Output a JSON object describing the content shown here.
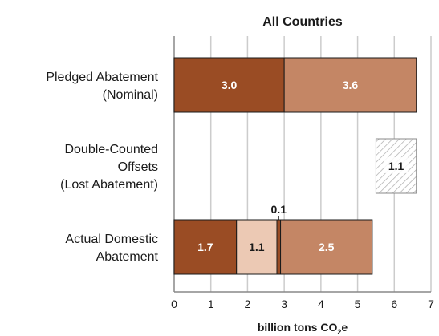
{
  "chart_data": {
    "type": "bar",
    "orientation": "horizontal",
    "stacked": true,
    "title": "All Countries",
    "xlabel": "billion tons CO2e",
    "xlabel_parts": {
      "main": "billion tons CO",
      "subscript": "2",
      "suffix": "e"
    },
    "xlim": [
      0,
      7
    ],
    "xticks": [
      "0",
      "1",
      "2",
      "3",
      "4",
      "5",
      "6",
      "7"
    ],
    "grid": true,
    "colors": {
      "dark": "#9a4c24",
      "medium": "#c48665",
      "light": "#ecc9b4",
      "hatch": "#a8a8a8",
      "grid": "#cccccc",
      "outline": "#1a1a1a"
    },
    "categories": [
      {
        "lines": [
          "Pledged Abatement",
          "(Nominal)"
        ]
      },
      {
        "lines": [
          "Double-Counted",
          "Offsets",
          "(Lost Abatement)"
        ]
      },
      {
        "lines": [
          "Actual Domestic",
          "Abatement"
        ]
      }
    ],
    "rows": [
      {
        "segments": [
          {
            "start": 0,
            "value": 3.0,
            "label": "3.0",
            "style": "dark"
          },
          {
            "start": 3.0,
            "value": 3.6,
            "label": "3.6",
            "style": "medium"
          }
        ]
      },
      {
        "segments": [
          {
            "start": 5.5,
            "value": 1.1,
            "label": "1.1",
            "style": "hatch"
          }
        ]
      },
      {
        "segments": [
          {
            "start": 0,
            "value": 1.7,
            "label": "1.7",
            "style": "dark"
          },
          {
            "start": 1.7,
            "value": 1.1,
            "label": "1.1",
            "style": "light"
          },
          {
            "start": 2.8,
            "value": 0.1,
            "label": "0.1",
            "style": "dark",
            "label_position": "above"
          },
          {
            "start": 2.9,
            "value": 2.5,
            "label": "2.5",
            "style": "medium"
          }
        ]
      }
    ]
  }
}
